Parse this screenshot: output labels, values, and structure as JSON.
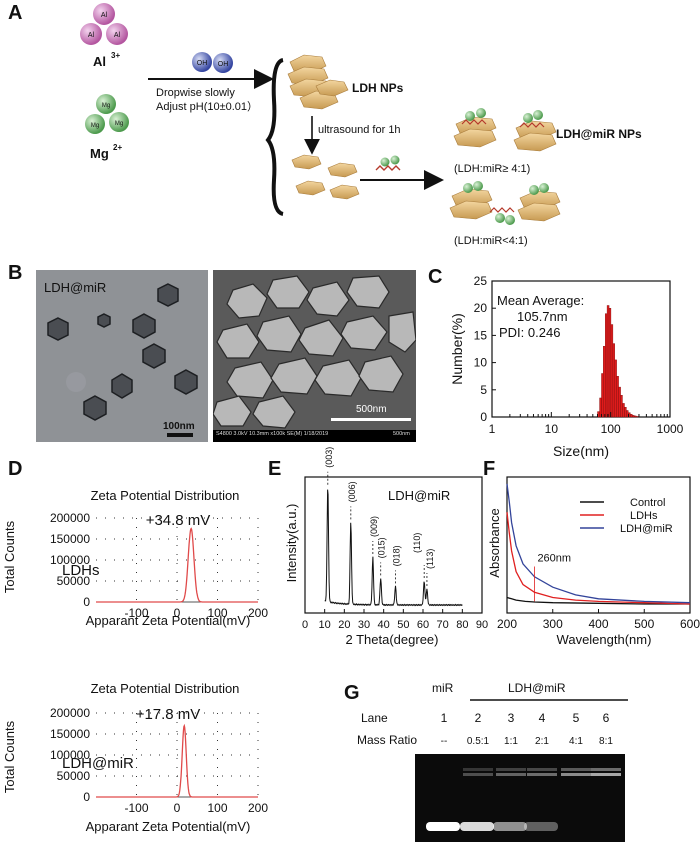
{
  "panel_labels": {
    "a": "A",
    "b": "B",
    "c": "C",
    "d": "D",
    "e": "E",
    "f": "F",
    "g": "G"
  },
  "scheme": {
    "ion_al_symbol": "Al",
    "ion_al_label": "Al",
    "ion_al_charge": "3+",
    "ion_mg_symbol": "Mg",
    "ion_mg_label": "Mg",
    "ion_mg_charge": "2+",
    "oh_symbol": "OH",
    "step1_line1": "Dropwise slowly",
    "step1_line2": "Adjust pH(10±0.01）",
    "ldh_label": "LDH NPs",
    "step2_label": "ultrasound for 1h",
    "product_label": "LDH@miR NPs",
    "ratio_high": "(LDH:miR≥ 4:1)",
    "ratio_low": "(LDH:miR<4:1)",
    "colors": {
      "al": "#c569b5",
      "mg": "#5fae62",
      "oh": "#3d4fa8",
      "ldh": "#e2b770",
      "mir": "#b53b2c"
    }
  },
  "micro": {
    "tem_label": "LDH@miR",
    "tem_scale": "100nm",
    "sem_scale": "500nm",
    "sem_footer": "S4800 3.0kV 10.3mm x100k SE(M) 1/18/2019",
    "sem_footer_scale": "500nm"
  },
  "chart_data": [
    {
      "id": "C",
      "type": "bar",
      "xlabel": "Size(nm)",
      "ylabel": "Number(%)",
      "xscale": "log",
      "xlim": [
        1,
        1000
      ],
      "ylim": [
        0,
        25
      ],
      "xticks": [
        "1",
        "10",
        "100",
        "1000"
      ],
      "yticks": [
        "0",
        "5",
        "10",
        "15",
        "20",
        "25"
      ],
      "annotation": [
        "Mean Average:",
        "105.7nm",
        "PDI: 0.246"
      ],
      "bins": [
        60,
        65,
        70,
        75,
        81,
        87,
        94,
        101,
        109,
        117,
        126,
        136,
        147,
        158,
        171,
        184,
        198,
        214,
        231,
        249,
        269
      ],
      "values": [
        1.0,
        3.5,
        8.0,
        13.0,
        19.0,
        20.5,
        20.0,
        17.0,
        13.5,
        10.5,
        7.5,
        5.5,
        4.0,
        2.5,
        1.8,
        1.2,
        0.8,
        0.5,
        0.3,
        0.2,
        0.1
      ],
      "color": "#e01b1b"
    },
    {
      "id": "D1",
      "type": "line",
      "title": "Zeta Potential Distribution",
      "xlabel": "Apparant Zeta Potential(mV)",
      "ylabel": "Total Counts",
      "xlim": [
        -200,
        200
      ],
      "ylim": [
        0,
        200000
      ],
      "xticks": [
        "-100",
        "0",
        "100",
        "200"
      ],
      "yticks": [
        "0",
        "50000",
        "100000",
        "150000",
        "200000"
      ],
      "peak_label": "+34.8 mV",
      "sample_label": "LDHs",
      "peak_mv": 34.8,
      "peak_counts": 175000,
      "peak_width_mv": 7,
      "color": "#e04a4a"
    },
    {
      "id": "D2",
      "type": "line",
      "title": "Zeta Potential Distribution",
      "xlabel": "Apparant Zeta Potential(mV)",
      "ylabel": "Total Counts",
      "xlim": [
        -200,
        200
      ],
      "ylim": [
        0,
        200000
      ],
      "xticks": [
        "-100",
        "0",
        "100",
        "200"
      ],
      "yticks": [
        "0",
        "50000",
        "100000",
        "150000",
        "200000"
      ],
      "peak_label": "+17.8 mV",
      "sample_label": "LDH@miR",
      "peak_mv": 17.8,
      "peak_counts": 170000,
      "peak_width_mv": 5,
      "color": "#e04a4a"
    },
    {
      "id": "E",
      "type": "line",
      "title": "LDH@miR",
      "xlabel": "2 Theta(degree)",
      "ylabel": "Intensity(a.u.)",
      "xlim": [
        0,
        90
      ],
      "ylim": [
        0,
        1
      ],
      "xticks": [
        "0",
        "10",
        "20",
        "30",
        "40",
        "50",
        "60",
        "70",
        "80",
        "90"
      ],
      "peaks": [
        {
          "label": "(003)",
          "x": 11.6,
          "h": 0.88
        },
        {
          "label": "(006)",
          "x": 23.3,
          "h": 0.62
        },
        {
          "label": "(009)",
          "x": 34.5,
          "h": 0.36
        },
        {
          "label": "(015)",
          "x": 38.5,
          "h": 0.2
        },
        {
          "label": "(018)",
          "x": 46.0,
          "h": 0.14
        },
        {
          "label": "(110)",
          "x": 60.6,
          "h": 0.18
        },
        {
          "label": "(113)",
          "x": 62.0,
          "h": 0.12
        }
      ],
      "baseline": 0.06,
      "color": "#111111"
    },
    {
      "id": "F",
      "type": "line",
      "xlabel": "Wavelength(nm)",
      "ylabel": "Absorbance",
      "xlim": [
        200,
        600
      ],
      "ylim": [
        0,
        1
      ],
      "xticks": [
        "200",
        "300",
        "400",
        "500",
        "600"
      ],
      "annotation": "260nm",
      "annotation_x": 260,
      "series": [
        {
          "name": "Control",
          "color": "#111111",
          "x": [
            200,
            210,
            220,
            240,
            260,
            300,
            400,
            500,
            600
          ],
          "y": [
            0.12,
            0.11,
            0.1,
            0.09,
            0.085,
            0.08,
            0.075,
            0.07,
            0.07
          ]
        },
        {
          "name": "LDHs",
          "color": "#e02020",
          "x": [
            200,
            205,
            210,
            220,
            235,
            260,
            300,
            350,
            400,
            500,
            600
          ],
          "y": [
            0.78,
            0.62,
            0.48,
            0.32,
            0.22,
            0.16,
            0.12,
            0.1,
            0.09,
            0.08,
            0.07
          ]
        },
        {
          "name": "LDH@miR",
          "color": "#33449a",
          "x": [
            200,
            205,
            210,
            220,
            235,
            260,
            300,
            350,
            400,
            500,
            600
          ],
          "y": [
            1.0,
            0.86,
            0.7,
            0.52,
            0.38,
            0.28,
            0.2,
            0.14,
            0.11,
            0.09,
            0.08
          ]
        }
      ]
    }
  ],
  "gel": {
    "header_mir": "miR",
    "header_ldh": "LDH@miR",
    "lane_label": "Lane",
    "mass_label": "Mass Ratio",
    "lanes": [
      "1",
      "2",
      "3",
      "4",
      "5",
      "6"
    ],
    "ratios": [
      "--",
      "0.5:1",
      "1:1",
      "2:1",
      "4:1",
      "8:1"
    ],
    "free_band": [
      1.0,
      0.85,
      0.55,
      0.35,
      0.0,
      0.0
    ],
    "retained_band": [
      0.0,
      0.35,
      0.45,
      0.5,
      0.65,
      0.8
    ]
  }
}
